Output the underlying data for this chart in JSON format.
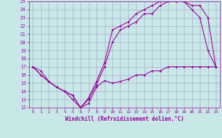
{
  "xlabel": "Windchill (Refroidissement éolien,°C)",
  "line_color": "#990099",
  "bg_color": "#c8e8e8",
  "grid_color": "#aaaacc",
  "xlim": [
    -0.5,
    23.5
  ],
  "ylim": [
    12,
    25
  ],
  "xticks": [
    0,
    1,
    2,
    3,
    4,
    5,
    6,
    7,
    8,
    9,
    10,
    11,
    12,
    13,
    14,
    15,
    16,
    17,
    18,
    19,
    20,
    21,
    22,
    23
  ],
  "yticks": [
    12,
    13,
    14,
    15,
    16,
    17,
    18,
    19,
    20,
    21,
    22,
    23,
    24,
    25
  ],
  "line1_x": [
    0,
    1,
    2,
    3,
    4,
    5,
    6,
    7,
    8,
    9,
    10,
    11,
    12,
    13,
    14,
    15,
    16,
    17,
    18,
    19,
    20,
    21,
    22,
    23
  ],
  "line1_y": [
    17,
    16.5,
    15.2,
    14.5,
    14.0,
    13.5,
    12.0,
    13.0,
    14.8,
    17.0,
    20.0,
    21.5,
    22.0,
    22.5,
    23.5,
    23.5,
    24.5,
    25.0,
    25.0,
    25.0,
    24.0,
    23.0,
    19.0,
    17.0
  ],
  "line2_x": [
    0,
    1,
    2,
    3,
    4,
    5,
    6,
    7,
    8,
    9,
    10,
    11,
    12,
    13,
    14,
    15,
    16,
    17,
    18,
    19,
    20,
    21,
    22,
    23
  ],
  "line2_y": [
    17,
    16.0,
    15.2,
    14.5,
    14.0,
    13.5,
    12.0,
    13.2,
    15.2,
    17.5,
    21.5,
    22.0,
    22.5,
    23.5,
    24.0,
    24.5,
    25.0,
    25.0,
    25.0,
    25.0,
    24.5,
    24.5,
    23.0,
    17.0
  ],
  "line3_x": [
    0,
    1,
    2,
    3,
    4,
    5,
    6,
    7,
    8,
    9,
    10,
    11,
    12,
    13,
    14,
    15,
    16,
    17,
    18,
    19,
    20,
    21,
    22,
    23
  ],
  "line3_y": [
    17,
    16.0,
    15.2,
    14.5,
    14.0,
    13.0,
    12.0,
    12.5,
    14.5,
    15.3,
    15.0,
    15.2,
    15.5,
    16.0,
    16.0,
    16.5,
    16.5,
    17.0,
    17.0,
    17.0,
    17.0,
    17.0,
    17.0,
    17.0
  ]
}
